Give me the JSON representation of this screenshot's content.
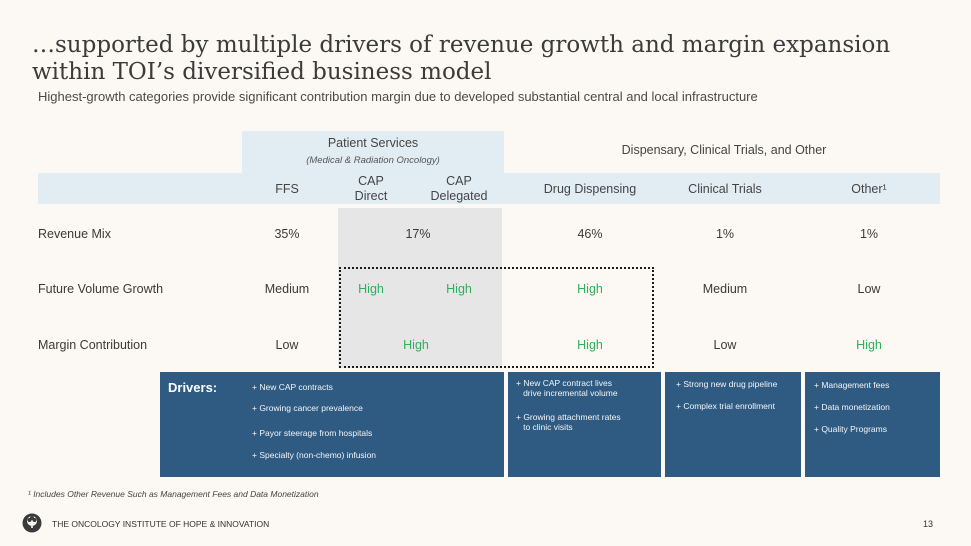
{
  "title": "…supported by multiple drivers of revenue growth and margin expansion within TOI’s diversified business model",
  "subtitle": "Highest-growth categories provide significant contribution margin due to developed substantial central and local infrastructure",
  "header": {
    "patient_services": "Patient Services",
    "patient_services_sub": "(Medical & Radiation Oncology)",
    "dispensary_group": "Dispensary, Clinical Trials, and Other"
  },
  "columns": {
    "ffs": "FFS",
    "cap_direct": "CAP Direct",
    "cap_delegated": "CAP Delegated",
    "drug_dispensing": "Drug Dispensing",
    "clinical_trials": "Clinical Trials",
    "other": "Other¹"
  },
  "rows": {
    "revenue_mix": {
      "label": "Revenue Mix",
      "ffs": "35%",
      "cap": "17%",
      "drug_dispensing": "46%",
      "clinical_trials": "1%",
      "other": "1%"
    },
    "future_volume_growth": {
      "label": "Future Volume Growth",
      "ffs": "Medium",
      "cap_direct": "High",
      "cap_delegated": "High",
      "drug_dispensing": "High",
      "clinical_trials": "Medium",
      "other": "Low"
    },
    "margin_contribution": {
      "label": "Margin Contribution",
      "ffs": "Low",
      "cap": "High",
      "drug_dispensing": "High",
      "clinical_trials": "Low",
      "other": "High"
    }
  },
  "drivers": {
    "label": "Drivers:",
    "patient_services": [
      "+ New CAP contracts",
      "+ Growing cancer prevalence",
      "+ Payor steerage from hospitals",
      "+ Specialty (non-chemo) infusion"
    ],
    "drug_dispensing": [
      "+ New CAP contract lives\n   drive incremental volume",
      "+ Growing attachment rates\n   to clinic visits"
    ],
    "clinical_trials": [
      "+ Strong new drug pipeline",
      "+ Complex trial enrollment"
    ],
    "other": [
      "+ Management fees",
      "+ Data monetization",
      "+ Quality Programs"
    ]
  },
  "footnote": "¹ Includes Other Revenue Such as Management Fees and Data Monetization",
  "footer": "THE ONCOLOGY INSTITUTE OF HOPE & INNOVATION",
  "page_number": "13",
  "colors": {
    "accent_green": "#2fae5c",
    "driver_blue": "#2f5b82",
    "header_band": "#e2edf3"
  },
  "logo_icon": "tree-logo-icon"
}
